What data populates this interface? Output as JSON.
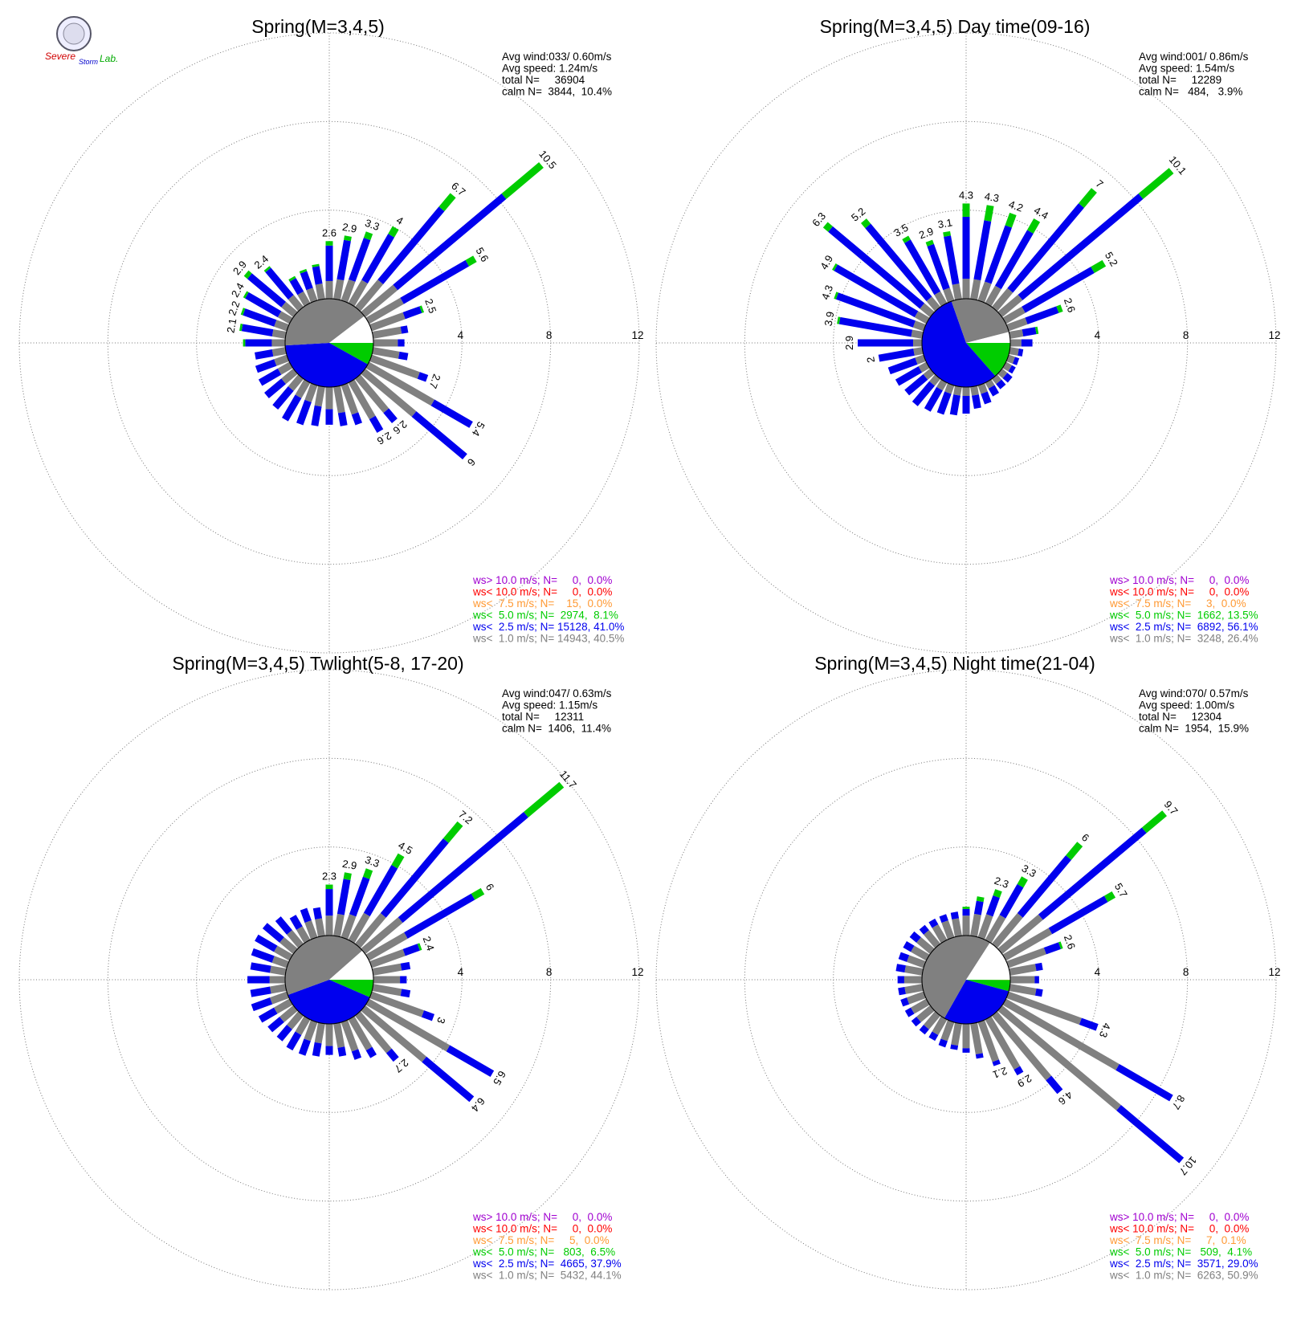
{
  "logo": [
    "Severe",
    "Storm",
    "Lab."
  ],
  "chart_data": [
    {
      "type": "windrose",
      "title": "Spring(M=3,4,5)",
      "stats": [
        "Avg wind:033/ 0.60m/s",
        "Avg speed: 1.24m/s",
        "total N=     36904",
        "calm N=  3844,  10.4%"
      ],
      "calm_percent": 10.4,
      "directions": [
        0,
        10,
        20,
        30,
        40,
        50,
        60,
        70,
        80,
        90,
        100,
        110,
        120,
        130,
        140,
        150,
        160,
        170,
        180,
        190,
        200,
        210,
        220,
        230,
        240,
        250,
        260,
        270,
        280,
        290,
        300,
        310,
        320,
        330,
        340,
        350
      ],
      "rlim": [
        0,
        12
      ],
      "rticks": [
        4,
        8,
        12
      ],
      "series": [
        {
          "name": "ws> 10.0 m/s; N=     0,  0.0%",
          "color": "#a000d0",
          "share": 0.0
        },
        {
          "name": "ws< 10.0 m/s; N=     0,  0.0%",
          "color": "#ff0000",
          "share": 0.0
        },
        {
          "name": "ws<  7.5 m/s; N=    15,  0.0%",
          "color": "#ff9933",
          "share": 0.0
        },
        {
          "name": "ws<  5.0 m/s; N=  2974,  8.1%",
          "color": "#00cc00",
          "share": 8.1,
          "values": [
            0.2,
            0.2,
            0.3,
            0.4,
            0.8,
            2.2,
            0.4,
            0.1,
            0,
            0,
            0,
            0,
            0,
            0,
            0,
            0,
            0,
            0,
            0,
            0,
            0,
            0,
            0,
            0,
            0,
            0,
            0,
            0.1,
            0.1,
            0.1,
            0.1,
            0.2,
            0.1,
            0.1,
            0.1,
            0.1
          ]
        },
        {
          "name": "ws<  2.5 m/s; N= 15128, 41.0%",
          "color": "#0000ee",
          "share": 41.0,
          "values": [
            1.6,
            1.8,
            2.0,
            2.4,
            4.3,
            6.4,
            3.4,
            0.8,
            0.3,
            0.3,
            0.4,
            0.4,
            2.0,
            3.0,
            0.6,
            0.7,
            0.5,
            0.6,
            0.7,
            0.9,
            1.1,
            1.2,
            1.1,
            1.0,
            1.0,
            0.9,
            0.8,
            1.2,
            1.4,
            1.5,
            1.7,
            2.0,
            1.6,
            0.7,
            0.8,
            0.8
          ]
        },
        {
          "name": "ws<  1.0 m/s; N= 14943, 40.5%",
          "color": "#808080",
          "share": 40.5,
          "values": [
            0.8,
            0.9,
            1.0,
            1.2,
            1.6,
            1.9,
            1.8,
            1.6,
            1.3,
            1.1,
            1.2,
            2.3,
            3.4,
            3.0,
            2.0,
            1.9,
            1.4,
            1.2,
            1.0,
            0.9,
            0.8,
            0.8,
            0.7,
            0.7,
            0.6,
            0.6,
            0.6,
            0.6,
            0.6,
            0.6,
            0.6,
            0.7,
            0.7,
            0.6,
            0.6,
            0.7
          ]
        }
      ],
      "bar_labels": [
        2.6,
        2.9,
        3.3,
        4.0,
        6.7,
        10.5,
        5.6,
        2.5,
        null,
        null,
        null,
        2.7,
        5.4,
        6.0,
        2.6,
        2.6,
        null,
        null,
        null,
        null,
        null,
        null,
        null,
        null,
        null,
        null,
        null,
        null,
        2.1,
        2.2,
        2.4,
        2.9,
        2.4,
        null,
        null,
        null
      ]
    },
    {
      "type": "windrose",
      "title": "Spring(M=3,4,5) Day time(09-16)",
      "stats": [
        "Avg wind:001/ 0.86m/s",
        "Avg speed: 1.54m/s",
        "total N=     12289",
        "calm N=   484,   3.9%"
      ],
      "calm_percent": 3.9,
      "directions": [
        0,
        10,
        20,
        30,
        40,
        50,
        60,
        70,
        80,
        90,
        100,
        110,
        120,
        130,
        140,
        150,
        160,
        170,
        180,
        190,
        200,
        210,
        220,
        230,
        240,
        250,
        260,
        270,
        280,
        290,
        300,
        310,
        320,
        330,
        340,
        350
      ],
      "rlim": [
        0,
        12
      ],
      "rticks": [
        4,
        8,
        12
      ],
      "series": [
        {
          "name": "ws> 10.0 m/s; N=     0,  0.0%",
          "color": "#a000d0",
          "share": 0.0
        },
        {
          "name": "ws< 10.0 m/s; N=     0,  0.0%",
          "color": "#ff0000",
          "share": 0.0
        },
        {
          "name": "ws<  7.5 m/s; N=     3,  0.0%",
          "color": "#ff9933",
          "share": 0.0
        },
        {
          "name": "ws<  5.0 m/s; N=  1662, 13.5%",
          "color": "#00cc00",
          "share": 13.5,
          "values": [
            0.6,
            0.7,
            0.6,
            0.6,
            0.9,
            1.8,
            0.6,
            0.2,
            0.1,
            0,
            0,
            0,
            0,
            0,
            0,
            0,
            0,
            0,
            0,
            0,
            0,
            0,
            0,
            0,
            0,
            0,
            0,
            0,
            0.1,
            0.1,
            0.1,
            0.3,
            0.3,
            0.2,
            0.2,
            0.2
          ]
        },
        {
          "name": "ws<  2.5 m/s; N=  6892, 56.1%",
          "color": "#0000ee",
          "share": 56.1,
          "values": [
            2.8,
            2.7,
            2.7,
            2.9,
            5.0,
            7.1,
            3.6,
            1.5,
            0.6,
            0.5,
            0.2,
            0.2,
            0.2,
            0.3,
            0.3,
            0.4,
            0.5,
            0.6,
            0.8,
            0.9,
            1.0,
            1.1,
            1.2,
            1.1,
            1.2,
            1.3,
            1.6,
            2.5,
            3.3,
            3.7,
            4.2,
            5.4,
            4.3,
            2.7,
            2.1,
            2.2
          ]
        },
        {
          "name": "ws<  1.0 m/s; N=  3248, 26.4%",
          "color": "#808080",
          "share": 26.4,
          "values": [
            0.9,
            0.9,
            0.9,
            0.9,
            1.1,
            1.2,
            1.0,
            0.9,
            0.6,
            0.5,
            0.4,
            0.3,
            0.3,
            0.3,
            0.3,
            0.3,
            0.4,
            0.4,
            0.4,
            0.4,
            0.4,
            0.4,
            0.4,
            0.4,
            0.4,
            0.4,
            0.4,
            0.4,
            0.5,
            0.5,
            0.6,
            0.6,
            0.6,
            0.6,
            0.6,
            0.7
          ]
        }
      ],
      "bar_labels": [
        4.3,
        4.3,
        4.2,
        4.4,
        7.0,
        10.1,
        5.2,
        2.6,
        null,
        null,
        null,
        null,
        null,
        null,
        null,
        null,
        null,
        null,
        null,
        null,
        null,
        null,
        null,
        null,
        null,
        null,
        2.0,
        2.9,
        3.9,
        4.3,
        4.9,
        6.3,
        5.2,
        3.5,
        2.9,
        3.1
      ]
    },
    {
      "type": "windrose",
      "title": "Spring(M=3,4,5) Twlight(5-8, 17-20)",
      "stats": [
        "Avg wind:047/ 0.63m/s",
        "Avg speed: 1.15m/s",
        "total N=     12311",
        "calm N=  1406,  11.4%"
      ],
      "calm_percent": 11.4,
      "directions": [
        0,
        10,
        20,
        30,
        40,
        50,
        60,
        70,
        80,
        90,
        100,
        110,
        120,
        130,
        140,
        150,
        160,
        170,
        180,
        190,
        200,
        210,
        220,
        230,
        240,
        250,
        260,
        270,
        280,
        290,
        300,
        310,
        320,
        330,
        340,
        350
      ],
      "rlim": [
        0,
        12
      ],
      "rticks": [
        4,
        8,
        12
      ],
      "series": [
        {
          "name": "ws> 10.0 m/s; N=     0,  0.0%",
          "color": "#a000d0",
          "share": 0.0
        },
        {
          "name": "ws< 10.0 m/s; N=     0,  0.0%",
          "color": "#ff0000",
          "share": 0.0
        },
        {
          "name": "ws<  7.5 m/s; N=     5,  0.0%",
          "color": "#ff9933",
          "share": 0.0
        },
        {
          "name": "ws<  5.0 m/s; N=   803,  6.5%",
          "color": "#00cc00",
          "share": 6.5,
          "values": [
            0.2,
            0.3,
            0.4,
            0.6,
            1.0,
            2.1,
            0.5,
            0.1,
            0,
            0,
            0,
            0,
            0,
            0,
            0,
            0,
            0,
            0,
            0,
            0,
            0,
            0,
            0,
            0,
            0,
            0,
            0,
            0,
            0,
            0,
            0,
            0,
            0,
            0,
            0,
            0
          ]
        },
        {
          "name": "ws<  2.5 m/s; N=  4665, 37.9%",
          "color": "#0000ee",
          "share": 37.9,
          "values": [
            1.2,
            1.6,
            1.8,
            2.5,
            4.4,
            7.4,
            3.5,
            0.7,
            0.4,
            0.3,
            0.4,
            0.5,
            2.3,
            2.8,
            0.5,
            0.4,
            0.4,
            0.4,
            0.4,
            0.6,
            0.7,
            0.8,
            0.7,
            0.7,
            0.8,
            0.9,
            0.9,
            1.0,
            0.9,
            1.0,
            1.0,
            1.0,
            0.8,
            0.6,
            0.6,
            0.5
          ]
        },
        {
          "name": "ws<  1.0 m/s; N=  5432, 44.1%",
          "color": "#808080",
          "share": 44.1,
          "values": [
            0.9,
            1.0,
            1.1,
            1.4,
            1.8,
            2.2,
            2.0,
            1.6,
            1.3,
            1.2,
            1.3,
            2.5,
            4.2,
            3.6,
            2.2,
            1.6,
            1.4,
            1.1,
            1.0,
            0.9,
            0.9,
            0.8,
            0.8,
            0.8,
            0.8,
            0.8,
            0.7,
            0.7,
            0.7,
            0.7,
            0.8,
            0.8,
            0.8,
            0.7,
            0.8,
            0.8
          ]
        }
      ],
      "bar_labels": [
        2.3,
        2.9,
        3.3,
        4.5,
        7.2,
        11.7,
        6.0,
        2.4,
        null,
        null,
        null,
        3.0,
        6.5,
        6.4,
        2.7,
        null,
        null,
        null,
        null,
        null,
        null,
        null,
        null,
        null,
        null,
        null,
        null,
        null,
        null,
        null,
        null,
        null,
        null,
        null,
        null,
        null
      ]
    },
    {
      "type": "windrose",
      "title": "Spring(M=3,4,5) Night time(21-04)",
      "stats": [
        "Avg wind:070/ 0.57m/s",
        "Avg speed: 1.00m/s",
        "total N=     12304",
        "calm N=  1954,  15.9%"
      ],
      "calm_percent": 15.9,
      "directions": [
        0,
        10,
        20,
        30,
        40,
        50,
        60,
        70,
        80,
        90,
        100,
        110,
        120,
        130,
        140,
        150,
        160,
        170,
        180,
        190,
        200,
        210,
        220,
        230,
        240,
        250,
        260,
        270,
        280,
        290,
        300,
        310,
        320,
        330,
        340,
        350
      ],
      "rlim": [
        0,
        12
      ],
      "rticks": [
        4,
        8,
        12
      ],
      "series": [
        {
          "name": "ws> 10.0 m/s; N=     0,  0.0%",
          "color": "#a000d0",
          "share": 0.0
        },
        {
          "name": "ws< 10.0 m/s; N=     0,  0.0%",
          "color": "#ff0000",
          "share": 0.0
        },
        {
          "name": "ws<  7.5 m/s; N=     7,  0.1%",
          "color": "#ff9933",
          "share": 0.1
        },
        {
          "name": "ws<  5.0 m/s; N=   509,  4.1%",
          "color": "#00cc00",
          "share": 4.1,
          "values": [
            0.1,
            0.2,
            0.3,
            0.4,
            0.8,
            1.2,
            0.4,
            0.1,
            0,
            0,
            0,
            0,
            0,
            0,
            0,
            0,
            0,
            0,
            0,
            0,
            0,
            0,
            0,
            0,
            0,
            0,
            0,
            0,
            0,
            0,
            0,
            0,
            0,
            0,
            0,
            0
          ]
        },
        {
          "name": "ws<  2.5 m/s; N=  3571, 29.0%",
          "color": "#0000ee",
          "share": 29.0,
          "values": [
            0.3,
            0.6,
            0.9,
            1.6,
            3.4,
            6.1,
            2.9,
            0.7,
            0.3,
            0.2,
            0.3,
            0.8,
            2.8,
            3.7,
            0.8,
            0.3,
            0.2,
            0.2,
            0.2,
            0.2,
            0.3,
            0.3,
            0.3,
            0.3,
            0.3,
            0.3,
            0.3,
            0.3,
            0.4,
            0.4,
            0.4,
            0.4,
            0.3,
            0.3,
            0.3,
            0.3
          ]
        },
        {
          "name": "ws<  1.0 m/s; N=  6263, 50.9%",
          "color": "#808080",
          "share": 50.9,
          "values": [
            0.9,
            1.0,
            1.1,
            1.3,
            1.8,
            2.4,
            2.4,
            1.8,
            1.2,
            1.1,
            1.2,
            3.5,
            5.9,
            7.0,
            3.8,
            2.6,
            1.9,
            1.4,
            1.1,
            1.0,
            0.9,
            0.8,
            0.8,
            0.8,
            0.8,
            0.8,
            0.8,
            0.8,
            0.8,
            0.8,
            0.8,
            0.8,
            0.8,
            0.8,
            0.8,
            0.8
          ]
        }
      ],
      "bar_labels": [
        null,
        null,
        2.3,
        3.3,
        6.0,
        9.7,
        5.7,
        2.6,
        null,
        null,
        null,
        4.3,
        8.7,
        10.7,
        4.6,
        2.9,
        2.1,
        null,
        null,
        null,
        null,
        null,
        null,
        null,
        null,
        null,
        null,
        null,
        null,
        null,
        null,
        null,
        null,
        null,
        null,
        null
      ]
    }
  ]
}
